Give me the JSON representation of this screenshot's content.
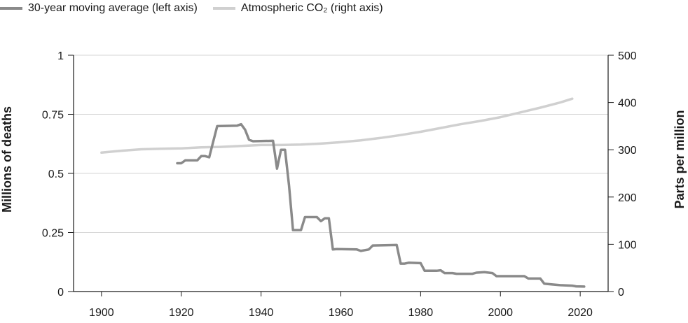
{
  "chart_data": {
    "type": "line",
    "title": "",
    "xlabel": "",
    "ylabel_left": "Millions of deaths",
    "ylabel_right": "Parts per million",
    "xlim": [
      1893,
      2027
    ],
    "ylim_left": [
      0,
      1
    ],
    "ylim_right": [
      0,
      500
    ],
    "x_ticks": [
      "1900",
      "1920",
      "1940",
      "1960",
      "1980",
      "2000",
      "2020"
    ],
    "y_ticks_left": [
      "0",
      "0.25",
      "0.5",
      "0.75",
      "1"
    ],
    "y_ticks_right": [
      "0",
      "100",
      "200",
      "300",
      "400",
      "500"
    ],
    "grid": "horizontal",
    "legend_position": "top-left",
    "series": [
      {
        "name": "30-year moving average (left axis)",
        "axis": "left",
        "color": "#8a8a8a",
        "points": [
          [
            1919,
            0.543
          ],
          [
            1920,
            0.543
          ],
          [
            1921,
            0.555
          ],
          [
            1924,
            0.555
          ],
          [
            1925,
            0.573
          ],
          [
            1926,
            0.573
          ],
          [
            1927,
            0.568
          ],
          [
            1929,
            0.7
          ],
          [
            1934,
            0.702
          ],
          [
            1935,
            0.708
          ],
          [
            1936,
            0.685
          ],
          [
            1937,
            0.642
          ],
          [
            1938,
            0.636
          ],
          [
            1943,
            0.638
          ],
          [
            1944,
            0.52
          ],
          [
            1945,
            0.6
          ],
          [
            1946,
            0.6
          ],
          [
            1947,
            0.45
          ],
          [
            1948,
            0.26
          ],
          [
            1950,
            0.26
          ],
          [
            1951,
            0.315
          ],
          [
            1954,
            0.315
          ],
          [
            1955,
            0.298
          ],
          [
            1956,
            0.31
          ],
          [
            1957,
            0.31
          ],
          [
            1958,
            0.178
          ],
          [
            1959,
            0.18
          ],
          [
            1964,
            0.178
          ],
          [
            1965,
            0.172
          ],
          [
            1967,
            0.178
          ],
          [
            1968,
            0.195
          ],
          [
            1974,
            0.197
          ],
          [
            1975,
            0.118
          ],
          [
            1976,
            0.118
          ],
          [
            1977,
            0.122
          ],
          [
            1980,
            0.12
          ],
          [
            1981,
            0.088
          ],
          [
            1984,
            0.088
          ],
          [
            1985,
            0.09
          ],
          [
            1986,
            0.078
          ],
          [
            1988,
            0.078
          ],
          [
            1989,
            0.075
          ],
          [
            1993,
            0.075
          ],
          [
            1994,
            0.08
          ],
          [
            1996,
            0.082
          ],
          [
            1998,
            0.078
          ],
          [
            1999,
            0.065
          ],
          [
            2006,
            0.065
          ],
          [
            2007,
            0.055
          ],
          [
            2010,
            0.055
          ],
          [
            2011,
            0.033
          ],
          [
            2013,
            0.03
          ],
          [
            2015,
            0.027
          ],
          [
            2018,
            0.025
          ],
          [
            2019,
            0.022
          ],
          [
            2021,
            0.021
          ]
        ]
      },
      {
        "name": "Atmospheric CO2 (right axis)",
        "axis": "right",
        "color": "#d0d0d0",
        "points": [
          [
            1900,
            294
          ],
          [
            1905,
            298
          ],
          [
            1910,
            301
          ],
          [
            1915,
            302
          ],
          [
            1920,
            303
          ],
          [
            1925,
            305
          ],
          [
            1930,
            306
          ],
          [
            1935,
            308
          ],
          [
            1940,
            310
          ],
          [
            1945,
            310
          ],
          [
            1950,
            311
          ],
          [
            1955,
            313
          ],
          [
            1960,
            316
          ],
          [
            1965,
            320
          ],
          [
            1970,
            325
          ],
          [
            1975,
            331
          ],
          [
            1980,
            338
          ],
          [
            1985,
            346
          ],
          [
            1990,
            354
          ],
          [
            1995,
            361
          ],
          [
            2000,
            369
          ],
          [
            2005,
            379
          ],
          [
            2010,
            389
          ],
          [
            2015,
            400
          ],
          [
            2018,
            408
          ]
        ]
      }
    ]
  },
  "legend": {
    "item1_label": "30-year moving average (left axis)",
    "item2_label": "Atmospheric CO₂ (right axis)",
    "item1_color": "#8a8a8a",
    "item2_color": "#d0d0d0"
  }
}
